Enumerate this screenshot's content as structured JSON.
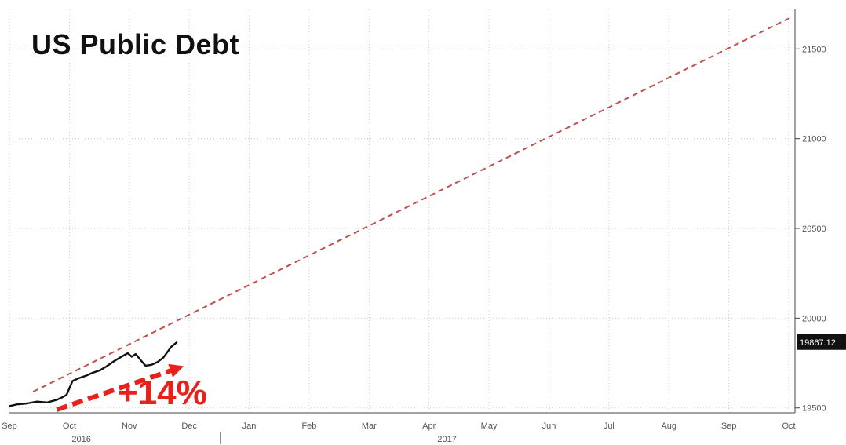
{
  "chart_data": {
    "type": "line",
    "title": "US Public Debt",
    "annotation": "+14%",
    "last_value_label": "19867.12",
    "last_value": 19867.12,
    "x_months": [
      "Sep",
      "Oct",
      "Nov",
      "Dec",
      "Jan",
      "Feb",
      "Mar",
      "Apr",
      "May",
      "Jun",
      "Jul",
      "Aug",
      "Sep",
      "Oct"
    ],
    "x_years": [
      "2016",
      "2017"
    ],
    "y_ticks": [
      19500,
      20000,
      20500,
      21000,
      21500
    ],
    "ylim": [
      19490,
      21720
    ],
    "grid": true,
    "series": [
      {
        "kind": "actual",
        "color": "#111111",
        "points": [
          [
            "2016-09-01",
            19510
          ],
          [
            "2016-09-05",
            19520
          ],
          [
            "2016-09-10",
            19525
          ],
          [
            "2016-09-15",
            19535
          ],
          [
            "2016-09-20",
            19530
          ],
          [
            "2016-09-25",
            19545
          ],
          [
            "2016-09-28",
            19560
          ],
          [
            "2016-09-30",
            19573
          ],
          [
            "2016-10-03",
            19650
          ],
          [
            "2016-10-06",
            19665
          ],
          [
            "2016-10-10",
            19680
          ],
          [
            "2016-10-13",
            19695
          ],
          [
            "2016-10-17",
            19710
          ],
          [
            "2016-10-20",
            19730
          ],
          [
            "2016-10-24",
            19760
          ],
          [
            "2016-10-27",
            19780
          ],
          [
            "2016-10-31",
            19805
          ],
          [
            "2016-11-02",
            19785
          ],
          [
            "2016-11-04",
            19800
          ],
          [
            "2016-11-07",
            19760
          ],
          [
            "2016-11-09",
            19735
          ],
          [
            "2016-11-12",
            19740
          ],
          [
            "2016-11-15",
            19755
          ],
          [
            "2016-11-18",
            19780
          ],
          [
            "2016-11-20",
            19810
          ],
          [
            "2016-11-22",
            19840
          ],
          [
            "2016-11-25",
            19867
          ]
        ]
      },
      {
        "kind": "projection",
        "color": "#c0504d",
        "points": [
          [
            "2016-09-13",
            19590
          ],
          [
            "2017-10-02",
            21675
          ]
        ]
      }
    ],
    "arrow": {
      "color": "#e8211c",
      "from": [
        "2016-09-25",
        19490
      ],
      "to": [
        "2016-11-25",
        19720
      ]
    }
  }
}
